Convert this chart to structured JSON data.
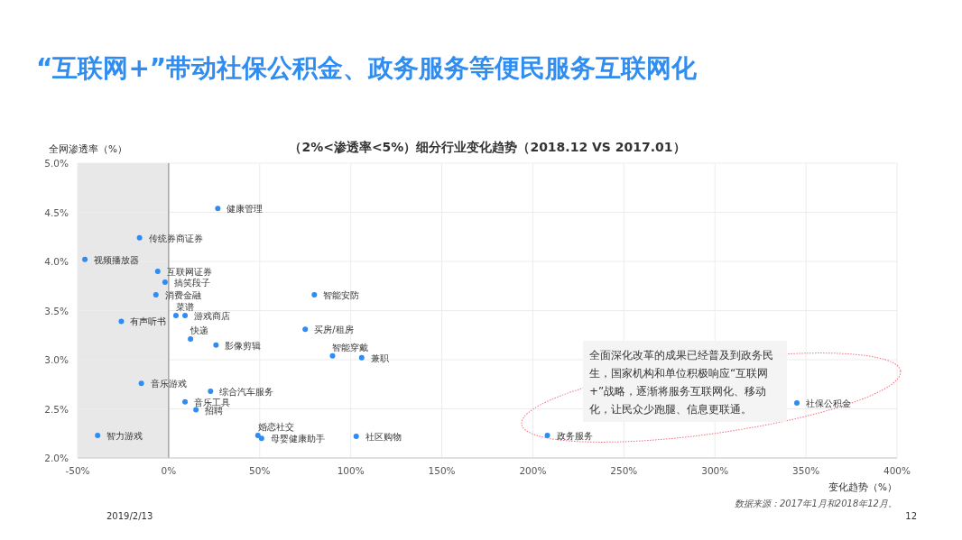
{
  "chart_data": {
    "type": "scatter",
    "title": "“互联网+”带动社保公积金、政务服务等便民服务互联网化",
    "subtitle": "（2%<渗透率<5%）细分行业变化趋势（2018.12 VS 2017.01）",
    "xlabel": "变化趋势（%）",
    "ylabel": "全网渗透率（%）",
    "x": [
      27,
      -16,
      -46,
      -6,
      -2,
      -7,
      4,
      9,
      -26,
      12,
      26,
      80,
      75,
      90,
      106,
      -15,
      23,
      9,
      15,
      49,
      51,
      103,
      -39,
      208,
      345
    ],
    "series": [
      {
        "color": "#2f8cf0",
        "values": [
          4.54,
          4.24,
          4.02,
          3.9,
          3.79,
          3.66,
          3.45,
          3.45,
          3.39,
          3.21,
          3.15,
          3.66,
          3.31,
          3.04,
          3.02,
          2.76,
          2.68,
          2.57,
          2.49,
          2.23,
          2.2,
          2.22,
          2.23,
          2.23,
          2.56
        ]
      }
    ],
    "xlim": [
      -50,
      400
    ],
    "ylim": [
      2,
      5
    ],
    "xticks": [
      {
        "value": -50,
        "label": "-50%"
      },
      {
        "value": 0,
        "label": "0%"
      },
      {
        "value": 50,
        "label": "50%"
      },
      {
        "value": 100,
        "label": "100%"
      },
      {
        "value": 150,
        "label": "150%"
      },
      {
        "value": 200,
        "label": "200%"
      },
      {
        "value": 250,
        "label": "250%"
      },
      {
        "value": 300,
        "label": "300%"
      },
      {
        "value": 350,
        "label": "350%"
      },
      {
        "value": 400,
        "label": "400%"
      }
    ],
    "yticks": [
      {
        "value": 2,
        "label": "2.0%"
      },
      {
        "value": 2.5,
        "label": "2.5%"
      },
      {
        "value": 3,
        "label": "3.0%"
      },
      {
        "value": 3.5,
        "label": "3.5%"
      },
      {
        "value": 4,
        "label": "4.0%"
      },
      {
        "value": 4.5,
        "label": "4.5%"
      },
      {
        "value": 5,
        "label": "5.0%"
      }
    ],
    "grid": true,
    "marker": "circle",
    "bands": [
      {
        "axis": "x",
        "from": -50,
        "to": 0,
        "color": "#e8e8e8"
      }
    ],
    "ref_lines": [
      {
        "axis": "x",
        "value": 0,
        "color": "#808080"
      }
    ],
    "annotations": [
      {
        "text": "健康管理",
        "x": 27,
        "y": 4.54
      },
      {
        "text": "传统券商证券",
        "x": -16,
        "y": 4.24
      },
      {
        "text": "视频播放器",
        "x": -46,
        "y": 4.02
      },
      {
        "text": "互联网证券",
        "x": -6,
        "y": 3.9
      },
      {
        "text": "搞笑段子",
        "x": -2,
        "y": 3.79
      },
      {
        "text": "消费金融",
        "x": -7,
        "y": 3.66
      },
      {
        "text": "菜谱",
        "x": 4,
        "y": 3.45
      },
      {
        "text": "游戏商店",
        "x": 9,
        "y": 3.45
      },
      {
        "text": "有声听书",
        "x": -26,
        "y": 3.39
      },
      {
        "text": "快递",
        "x": 12,
        "y": 3.21
      },
      {
        "text": "影像剪辑",
        "x": 26,
        "y": 3.15
      },
      {
        "text": "智能安防",
        "x": 80,
        "y": 3.66
      },
      {
        "text": "买房/租房",
        "x": 75,
        "y": 3.31
      },
      {
        "text": "智能穿戴",
        "x": 90,
        "y": 3.04
      },
      {
        "text": "兼职",
        "x": 106,
        "y": 3.02
      },
      {
        "text": "音乐游戏",
        "x": -15,
        "y": 2.76
      },
      {
        "text": "综合汽车服务",
        "x": 23,
        "y": 2.68
      },
      {
        "text": "音乐工具",
        "x": 9,
        "y": 2.57
      },
      {
        "text": "招聘",
        "x": 15,
        "y": 2.49
      },
      {
        "text": "婚恋社交",
        "x": 49,
        "y": 2.23
      },
      {
        "text": "母婴健康助手",
        "x": 51,
        "y": 2.2
      },
      {
        "text": "社区购物",
        "x": 103,
        "y": 2.22
      },
      {
        "text": "智力游戏",
        "x": -39,
        "y": 2.23
      },
      {
        "text": "政务服务",
        "x": 208,
        "y": 2.23
      },
      {
        "text": "社保公积金",
        "x": 345,
        "y": 2.56
      },
      "全面深化改革的成果已经普及到政务民生，国家机构和单位积极响应“互联网+”战略，逐渐将服务互联网化、移动化，让民众少跑腿、信息更联通。",
      "数据来源：2017年1月和2018年12月。",
      "2019/2/13",
      "12"
    ]
  }
}
